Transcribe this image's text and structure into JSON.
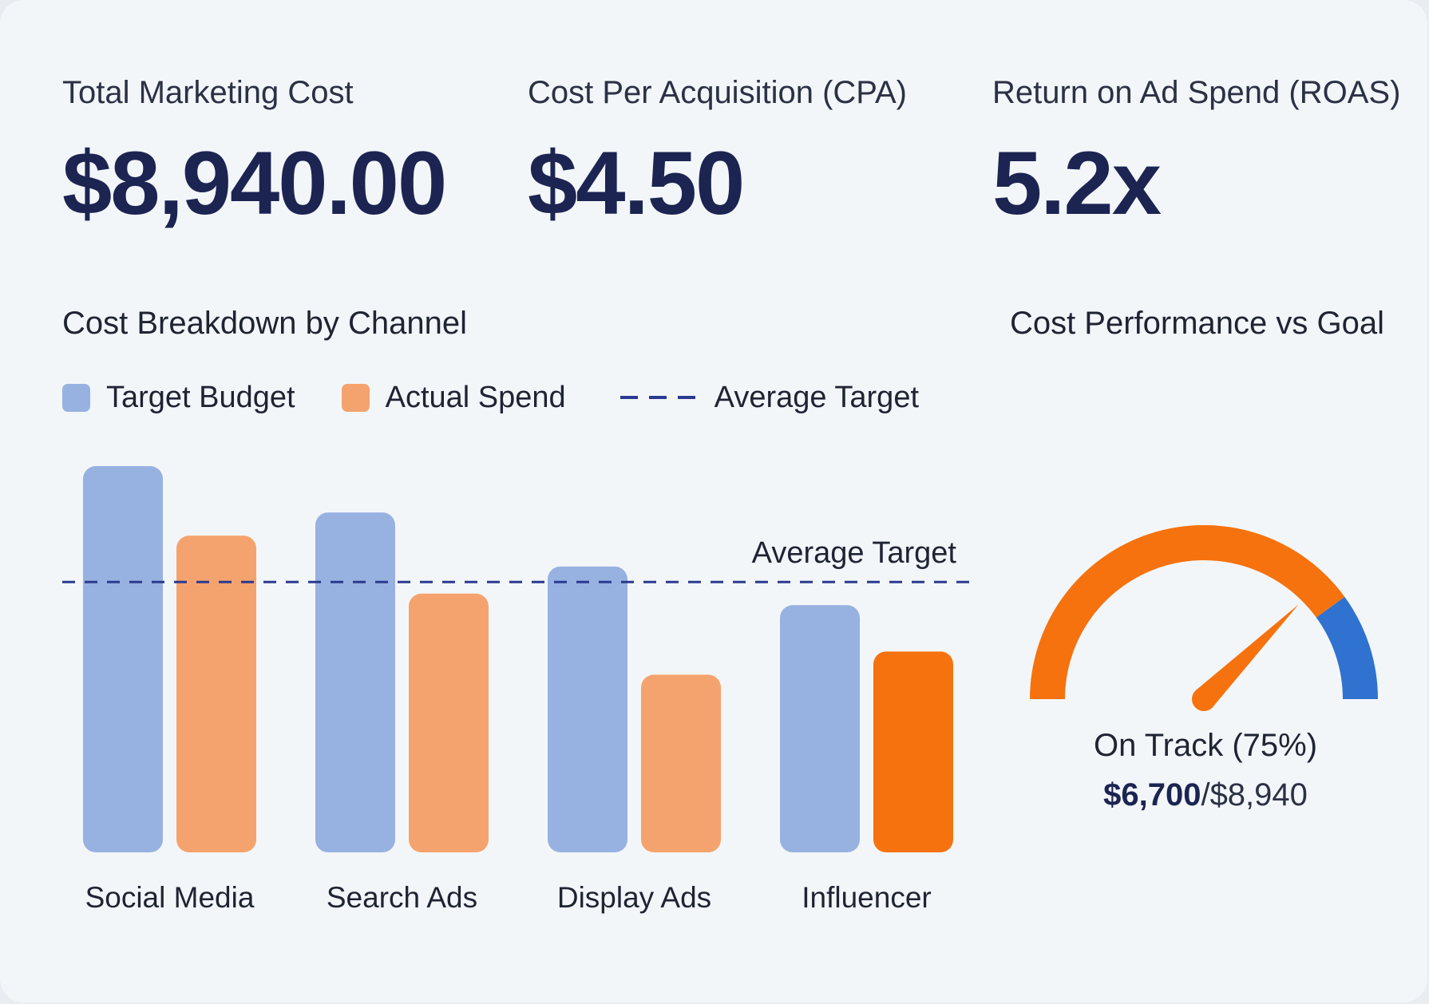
{
  "kpis": [
    {
      "label": "Total Marketing Cost",
      "value": "$8,940.00"
    },
    {
      "label": "Cost Per Acquisition (CPA)",
      "value": "$4.50"
    },
    {
      "label": "Return on Ad Spend (ROAS)",
      "value": "5.2x"
    }
  ],
  "breakdown": {
    "title": "Cost Breakdown by Channel",
    "legend": {
      "target": "Target Budget",
      "actual": "Actual Spend",
      "average": "Average Target"
    }
  },
  "gauge": {
    "title": "Cost Performance vs Goal",
    "status": "On Track (75%)",
    "current": "$6,700",
    "separator": "/",
    "goal": "$8,940"
  },
  "colors": {
    "target": "#97b1e1",
    "actual": "#f5a36e",
    "actual_highlight": "#f6720e",
    "average_line": "#2b3a8f",
    "gauge_main": "#f6720e",
    "gauge_end": "#2f72d0",
    "navy": "#1c2452"
  },
  "chart_data": [
    {
      "type": "bar",
      "title": "Cost Breakdown by Channel",
      "categories": [
        "Social Media",
        "Search Ads",
        "Display Ads",
        "Influencer"
      ],
      "series": [
        {
          "name": "Target Budget",
          "values": [
            100,
            88,
            74,
            64
          ]
        },
        {
          "name": "Actual Spend",
          "values": [
            82,
            67,
            46,
            52
          ]
        }
      ],
      "reference_line": {
        "name": "Average Target",
        "label": "Average Target",
        "value": 70
      },
      "ylim": [
        0,
        100
      ],
      "grid": false,
      "legend": "top-left"
    },
    {
      "type": "gauge",
      "title": "Cost Performance vs Goal",
      "value": 75,
      "max": 100,
      "current": 6700,
      "goal": 8940,
      "label": "On Track (75%)"
    }
  ]
}
